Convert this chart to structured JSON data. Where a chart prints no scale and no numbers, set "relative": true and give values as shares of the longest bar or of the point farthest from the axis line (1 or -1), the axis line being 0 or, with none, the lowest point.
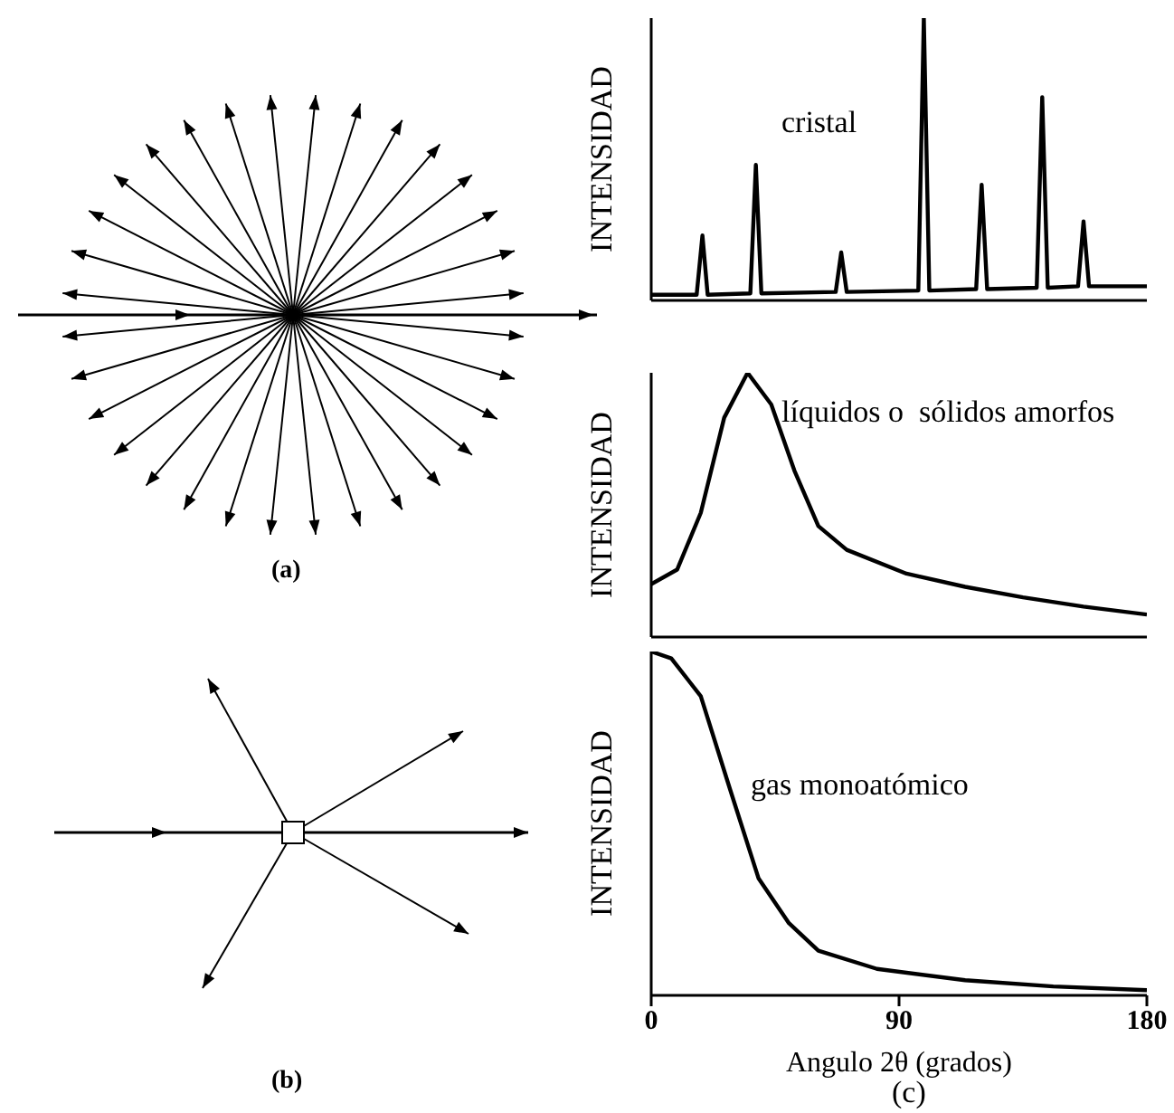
{
  "chart_data": [
    {
      "type": "other",
      "annotations": [
        "(a)",
        "(b)"
      ]
    },
    {
      "type": "line",
      "relative": true,
      "ylabel": "INTENSIDAD",
      "xlim": [
        0,
        180
      ],
      "tick_labels": false,
      "annotations": [
        "cristal"
      ],
      "x": [
        0,
        16.5,
        18.6,
        20.5,
        36,
        38,
        40,
        67,
        69,
        71,
        97,
        99,
        101,
        118,
        120,
        122,
        140,
        142,
        144,
        155,
        157,
        159,
        180
      ],
      "series": [
        {
          "color": "#000000",
          "values": [
            0.02,
            0.02,
            0.23,
            0.02,
            0.025,
            0.48,
            0.025,
            0.03,
            0.17,
            0.03,
            0.035,
            1.0,
            0.035,
            0.04,
            0.41,
            0.04,
            0.045,
            0.72,
            0.045,
            0.05,
            0.28,
            0.05,
            0.05
          ]
        }
      ]
    },
    {
      "type": "line",
      "relative": true,
      "ylabel": "INTENSIDAD",
      "xlim": [
        0,
        180
      ],
      "tick_labels": false,
      "annotations": [
        "líquidos o  sólidos amorfos"
      ],
      "x": [
        0,
        9.4,
        18,
        26.5,
        35,
        43.6,
        52,
        60.7,
        71,
        92.7,
        114,
        135,
        157,
        180
      ],
      "series": [
        {
          "color": "#000000",
          "values": [
            0.2,
            0.255,
            0.47,
            0.83,
            1.0,
            0.88,
            0.63,
            0.42,
            0.33,
            0.24,
            0.19,
            0.15,
            0.115,
            0.085
          ]
        }
      ]
    },
    {
      "type": "line",
      "relative": true,
      "ylabel": "INTENSIDAD",
      "xlabel": "Angulo  2θ (grados)",
      "xlim": [
        0,
        180
      ],
      "xticks": [
        0,
        90,
        180
      ],
      "tick_labels": "x",
      "annotations": [
        "gas monoatómico",
        "(c)"
      ],
      "x": [
        0,
        7.3,
        18,
        28.6,
        39,
        50,
        60.7,
        82,
        114,
        146,
        180
      ],
      "series": [
        {
          "color": "#000000",
          "values": [
            1.0,
            0.98,
            0.87,
            0.6,
            0.34,
            0.21,
            0.13,
            0.077,
            0.044,
            0.026,
            0.015
          ]
        }
      ]
    }
  ]
}
